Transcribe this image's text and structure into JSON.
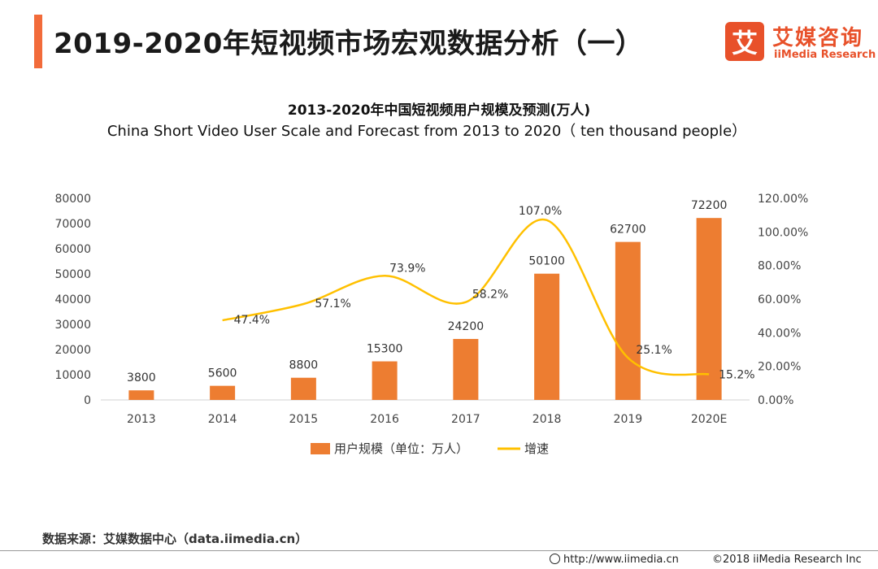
{
  "header": {
    "title": "2019-2020年短视频市场宏观数据分析（一）",
    "logo_mark": "艾",
    "logo_cn": "艾媒咨询",
    "logo_en": "iiMedia Research"
  },
  "chart_data": {
    "type": "bar",
    "title": "2013-2020年中国短视频用户规模及预测(万人)",
    "subtitle": "China Short Video User Scale and Forecast from 2013 to 2020（ ten thousand people）",
    "categories": [
      "2013",
      "2014",
      "2015",
      "2016",
      "2017",
      "2018",
      "2019",
      "2020E"
    ],
    "series": [
      {
        "name": "用户规模（单位：万人）",
        "type": "bar",
        "axis": "left",
        "color": "#ed7d31",
        "values": [
          3800,
          5600,
          8800,
          15300,
          24200,
          50100,
          62700,
          72200
        ],
        "labels": [
          "3800",
          "5600",
          "8800",
          "15300",
          "24200",
          "50100",
          "62700",
          "72200"
        ]
      },
      {
        "name": "增速",
        "type": "line",
        "axis": "right",
        "color": "#ffc000",
        "values": [
          null,
          47.4,
          57.1,
          73.9,
          58.2,
          107.0,
          25.1,
          15.2
        ],
        "labels": [
          "",
          "47.4%",
          "57.1%",
          "73.9%",
          "58.2%",
          "107.0%",
          "25.1%",
          "15.2%"
        ]
      }
    ],
    "y_left": {
      "ylim": [
        0,
        80000
      ],
      "ticks": [
        "0",
        "10000",
        "20000",
        "30000",
        "40000",
        "50000",
        "60000",
        "70000",
        "80000"
      ]
    },
    "y_right": {
      "ylim": [
        0,
        120
      ],
      "ticks": [
        "0.00%",
        "20.00%",
        "40.00%",
        "60.00%",
        "80.00%",
        "100.00%",
        "120.00%"
      ]
    },
    "grid": false,
    "legend": "bottom-center"
  },
  "footer": {
    "source": "数据来源：艾媒数据中心（data.iimedia.cn）",
    "url": "http://www.iimedia.cn",
    "copyright": "©2018  iiMedia Research  Inc"
  }
}
